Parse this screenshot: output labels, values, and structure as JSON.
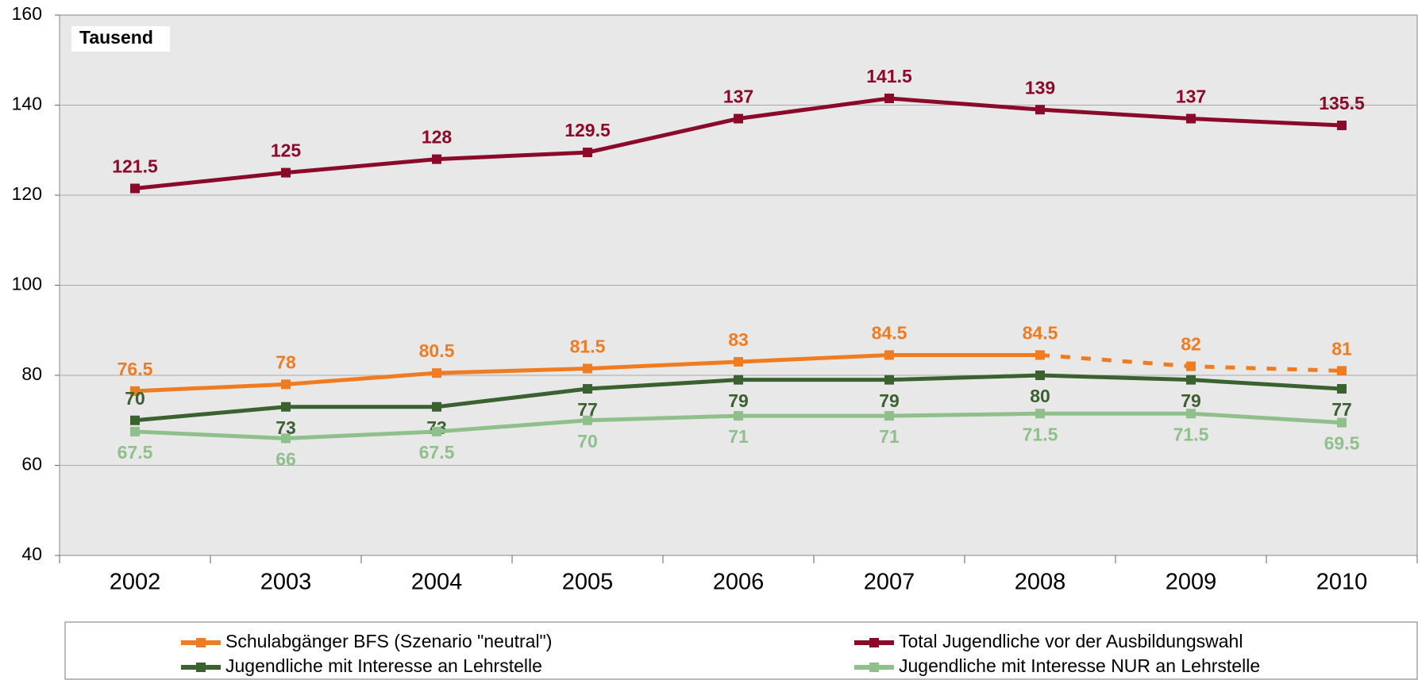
{
  "chart_data": {
    "type": "line",
    "annotation": "Tausend",
    "categories": [
      "2002",
      "2003",
      "2004",
      "2005",
      "2006",
      "2007",
      "2008",
      "2009",
      "2010"
    ],
    "series": [
      {
        "name": "Schulabgänger BFS (Szenario \"neutral\")",
        "color": "#f07c22",
        "dash_from": "2008",
        "values": [
          76.5,
          78,
          80.5,
          81.5,
          83,
          84.5,
          84.5,
          82,
          81
        ]
      },
      {
        "name": "Total Jugendliche vor der Ausbildungswahl",
        "color": "#8b0a2a",
        "values": [
          121.5,
          125,
          128,
          129.5,
          137,
          141.5,
          139,
          137,
          135.5
        ]
      },
      {
        "name": "Jugendliche mit Interesse an Lehrstelle",
        "color": "#3c6131",
        "values": [
          70,
          73,
          73,
          77,
          79,
          79,
          80,
          79,
          77
        ]
      },
      {
        "name": "Jugendliche mit Interesse NUR an Lehrstelle",
        "color": "#8fbf8a",
        "values": [
          67.5,
          66,
          67.5,
          70,
          71,
          71,
          71.5,
          71.5,
          69.5
        ]
      }
    ],
    "ylim": [
      40,
      160
    ],
    "yticks": [
      40,
      60,
      80,
      100,
      120,
      140,
      160
    ],
    "grid": true
  }
}
